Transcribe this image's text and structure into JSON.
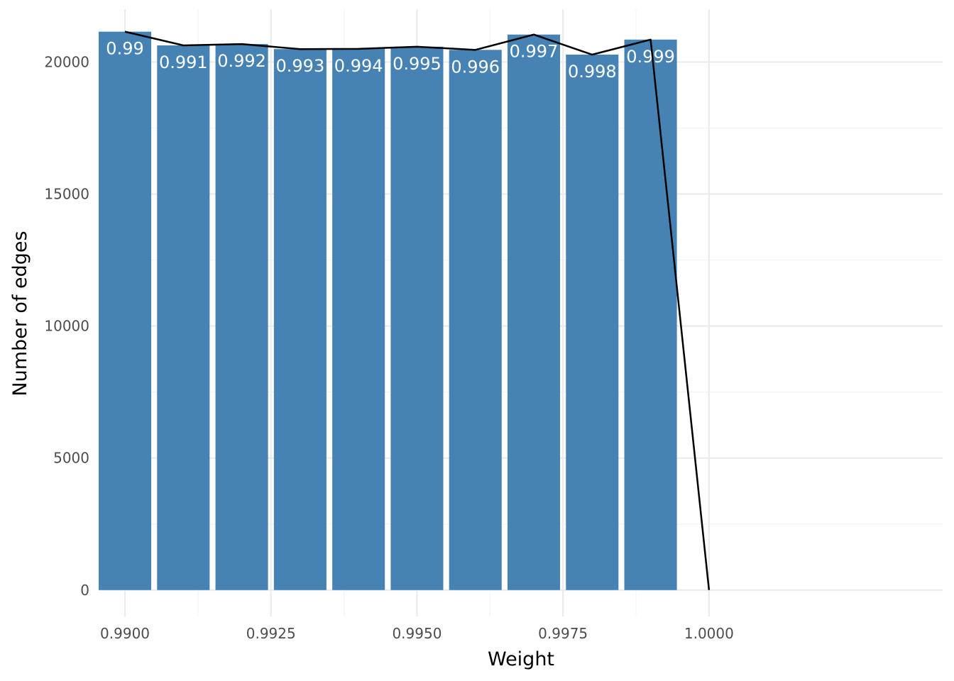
{
  "chart_data": {
    "type": "bar",
    "xlabel": "Weight",
    "ylabel": "Number of edges",
    "xlim": [
      0.98955,
      1.004
    ],
    "ylim": [
      -1000,
      22000
    ],
    "bar_width": 0.0009,
    "colors": {
      "bar": "#4682B4",
      "line": "#000000",
      "grid_major": "#ebebeb",
      "grid_minor": "#f3f3f3"
    },
    "x_ticks": [
      0.99,
      0.9925,
      0.995,
      0.9975,
      1.0
    ],
    "x_tick_labels": [
      "0.9900",
      "0.9925",
      "0.9950",
      "0.9975",
      "1.0000"
    ],
    "y_ticks": [
      0,
      5000,
      10000,
      15000,
      20000
    ],
    "y_tick_labels": [
      "0",
      "5000",
      "10000",
      "15000",
      "20000"
    ],
    "bars": [
      {
        "x": 0.99,
        "value": 21150,
        "label": "0.99"
      },
      {
        "x": 0.991,
        "value": 20630,
        "label": "0.991"
      },
      {
        "x": 0.992,
        "value": 20680,
        "label": "0.992"
      },
      {
        "x": 0.993,
        "value": 20490,
        "label": "0.993"
      },
      {
        "x": 0.994,
        "value": 20500,
        "label": "0.994"
      },
      {
        "x": 0.995,
        "value": 20580,
        "label": "0.995"
      },
      {
        "x": 0.996,
        "value": 20460,
        "label": "0.996"
      },
      {
        "x": 0.997,
        "value": 21040,
        "label": "0.997"
      },
      {
        "x": 0.998,
        "value": 20280,
        "label": "0.998"
      },
      {
        "x": 0.999,
        "value": 20850,
        "label": "0.999"
      }
    ],
    "line": {
      "x": [
        0.99,
        0.991,
        0.992,
        0.993,
        0.994,
        0.995,
        0.996,
        0.997,
        0.998,
        0.999,
        1.0
      ],
      "y": [
        21150,
        20630,
        20680,
        20490,
        20500,
        20580,
        20460,
        21040,
        20280,
        20850,
        0
      ]
    }
  }
}
